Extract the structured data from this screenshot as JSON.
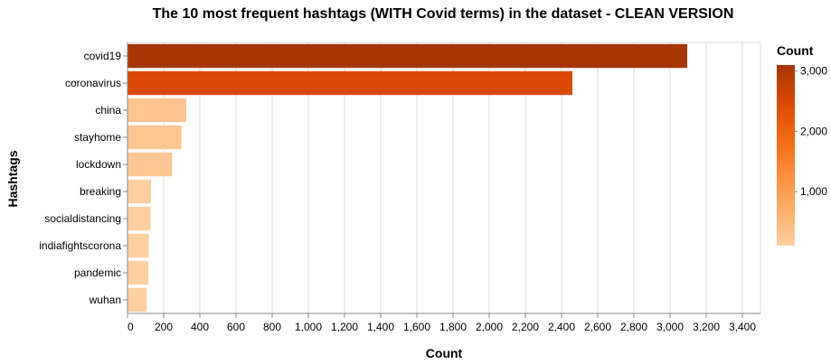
{
  "chart_data": {
    "type": "bar",
    "orientation": "horizontal",
    "title": "The 10 most frequent hashtags (WITH Covid terms) in the dataset - CLEAN VERSION",
    "xlabel": "Count",
    "ylabel": "Hashtags",
    "categories": [
      "covid19",
      "coronavirus",
      "china",
      "stayhome",
      "lockdown",
      "breaking",
      "socialdistancing",
      "indiafightscorona",
      "pandemic",
      "wuhan"
    ],
    "values": [
      3095,
      2460,
      325,
      298,
      247,
      130,
      127,
      118,
      115,
      107
    ],
    "xlim": [
      0,
      3500
    ],
    "xticks": [
      0,
      200,
      400,
      600,
      800,
      1000,
      1200,
      1400,
      1600,
      1800,
      2000,
      2200,
      2400,
      2600,
      2800,
      3000,
      3200,
      3400
    ],
    "xtick_labels": [
      "0",
      "200",
      "400",
      "600",
      "800",
      "1,000",
      "1,200",
      "1,400",
      "1,600",
      "1,800",
      "2,000",
      "2,200",
      "2,400",
      "2,600",
      "2,800",
      "3,000",
      "3,200",
      "3,400"
    ],
    "grid": true,
    "legend": {
      "title": "Count",
      "placement": "right",
      "type": "gradient",
      "domain": [
        107,
        3095
      ],
      "ticks": [
        1000,
        2000,
        3000
      ],
      "tick_labels": [
        "1,000",
        "2,000",
        "3,000"
      ],
      "colors": [
        "#fdd0a2",
        "#fdae6b",
        "#fd8d3c",
        "#f16913",
        "#d94801",
        "#a63603"
      ]
    }
  }
}
